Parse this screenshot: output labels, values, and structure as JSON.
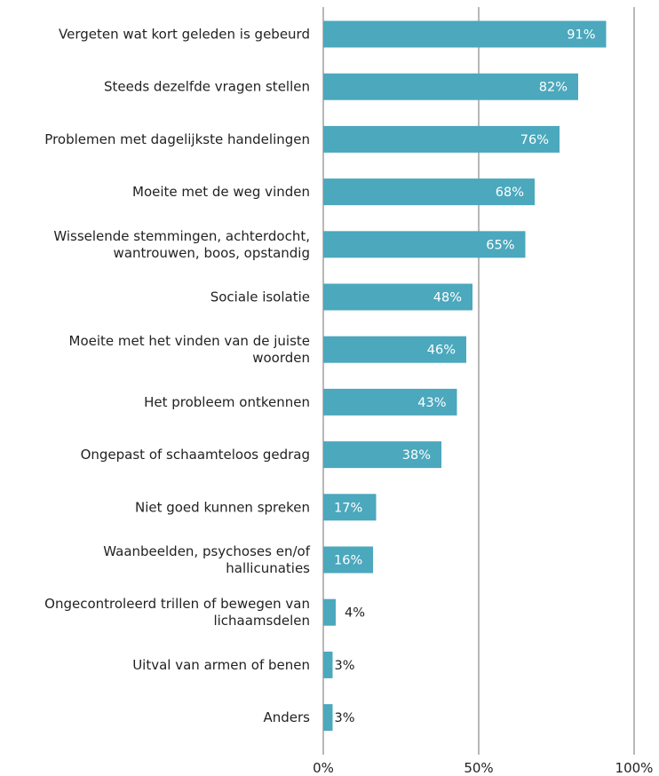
{
  "chart_data": {
    "type": "bar",
    "orientation": "horizontal",
    "categories": [
      "Vergeten wat kort geleden is gebeurd",
      "Steeds dezelfde vragen stellen",
      "Problemen met dagelijkste handelingen",
      "Moeite met de weg vinden",
      "Wisselende stemmingen, achterdocht, wantrouwen, boos, opstandig",
      "Sociale isolatie",
      "Moeite met het vinden van de juiste woorden",
      "Het probleem ontkennen",
      "Ongepast of schaamteloos gedrag",
      "Niet goed kunnen spreken",
      "Waanbeelden, psychoses en/of hallicunaties",
      "Ongecontroleerd trillen of bewegen van lichaamsdelen",
      "Uitval van armen of benen",
      "Anders"
    ],
    "category_lines": [
      [
        "Vergeten wat kort geleden is gebeurd"
      ],
      [
        "Steeds dezelfde vragen stellen"
      ],
      [
        "Problemen met dagelijkste handelingen"
      ],
      [
        "Moeite met de weg vinden"
      ],
      [
        "Wisselende stemmingen, achterdocht,",
        "wantrouwen, boos, opstandig"
      ],
      [
        "Sociale isolatie"
      ],
      [
        "Moeite met het vinden van de juiste",
        "woorden"
      ],
      [
        "Het probleem ontkennen"
      ],
      [
        "Ongepast of schaamteloos gedrag"
      ],
      [
        "Niet goed kunnen spreken"
      ],
      [
        "Waanbeelden, psychoses en/of",
        "hallicunaties"
      ],
      [
        "Ongecontroleerd trillen of bewegen van",
        "lichaamsdelen"
      ],
      [
        "Uitval van armen of benen"
      ],
      [
        "Anders"
      ]
    ],
    "values": [
      91,
      82,
      76,
      68,
      65,
      48,
      46,
      43,
      38,
      17,
      16,
      4,
      3,
      3
    ],
    "value_labels": [
      "91%",
      "82%",
      "76%",
      "68%",
      "65%",
      "48%",
      "46%",
      "43%",
      "38%",
      "17%",
      "16%",
      "4%",
      "3%",
      "3%"
    ],
    "xlim": [
      0,
      100
    ],
    "x_ticks": [
      0,
      50,
      100
    ],
    "x_tick_labels": [
      "0%",
      "50%",
      "100%"
    ],
    "grid": true,
    "colors": {
      "bar": "#4ba8bd",
      "gridline": "#8a8a8a",
      "label_inside": "#ffffff",
      "label_outside": "#222222"
    }
  }
}
